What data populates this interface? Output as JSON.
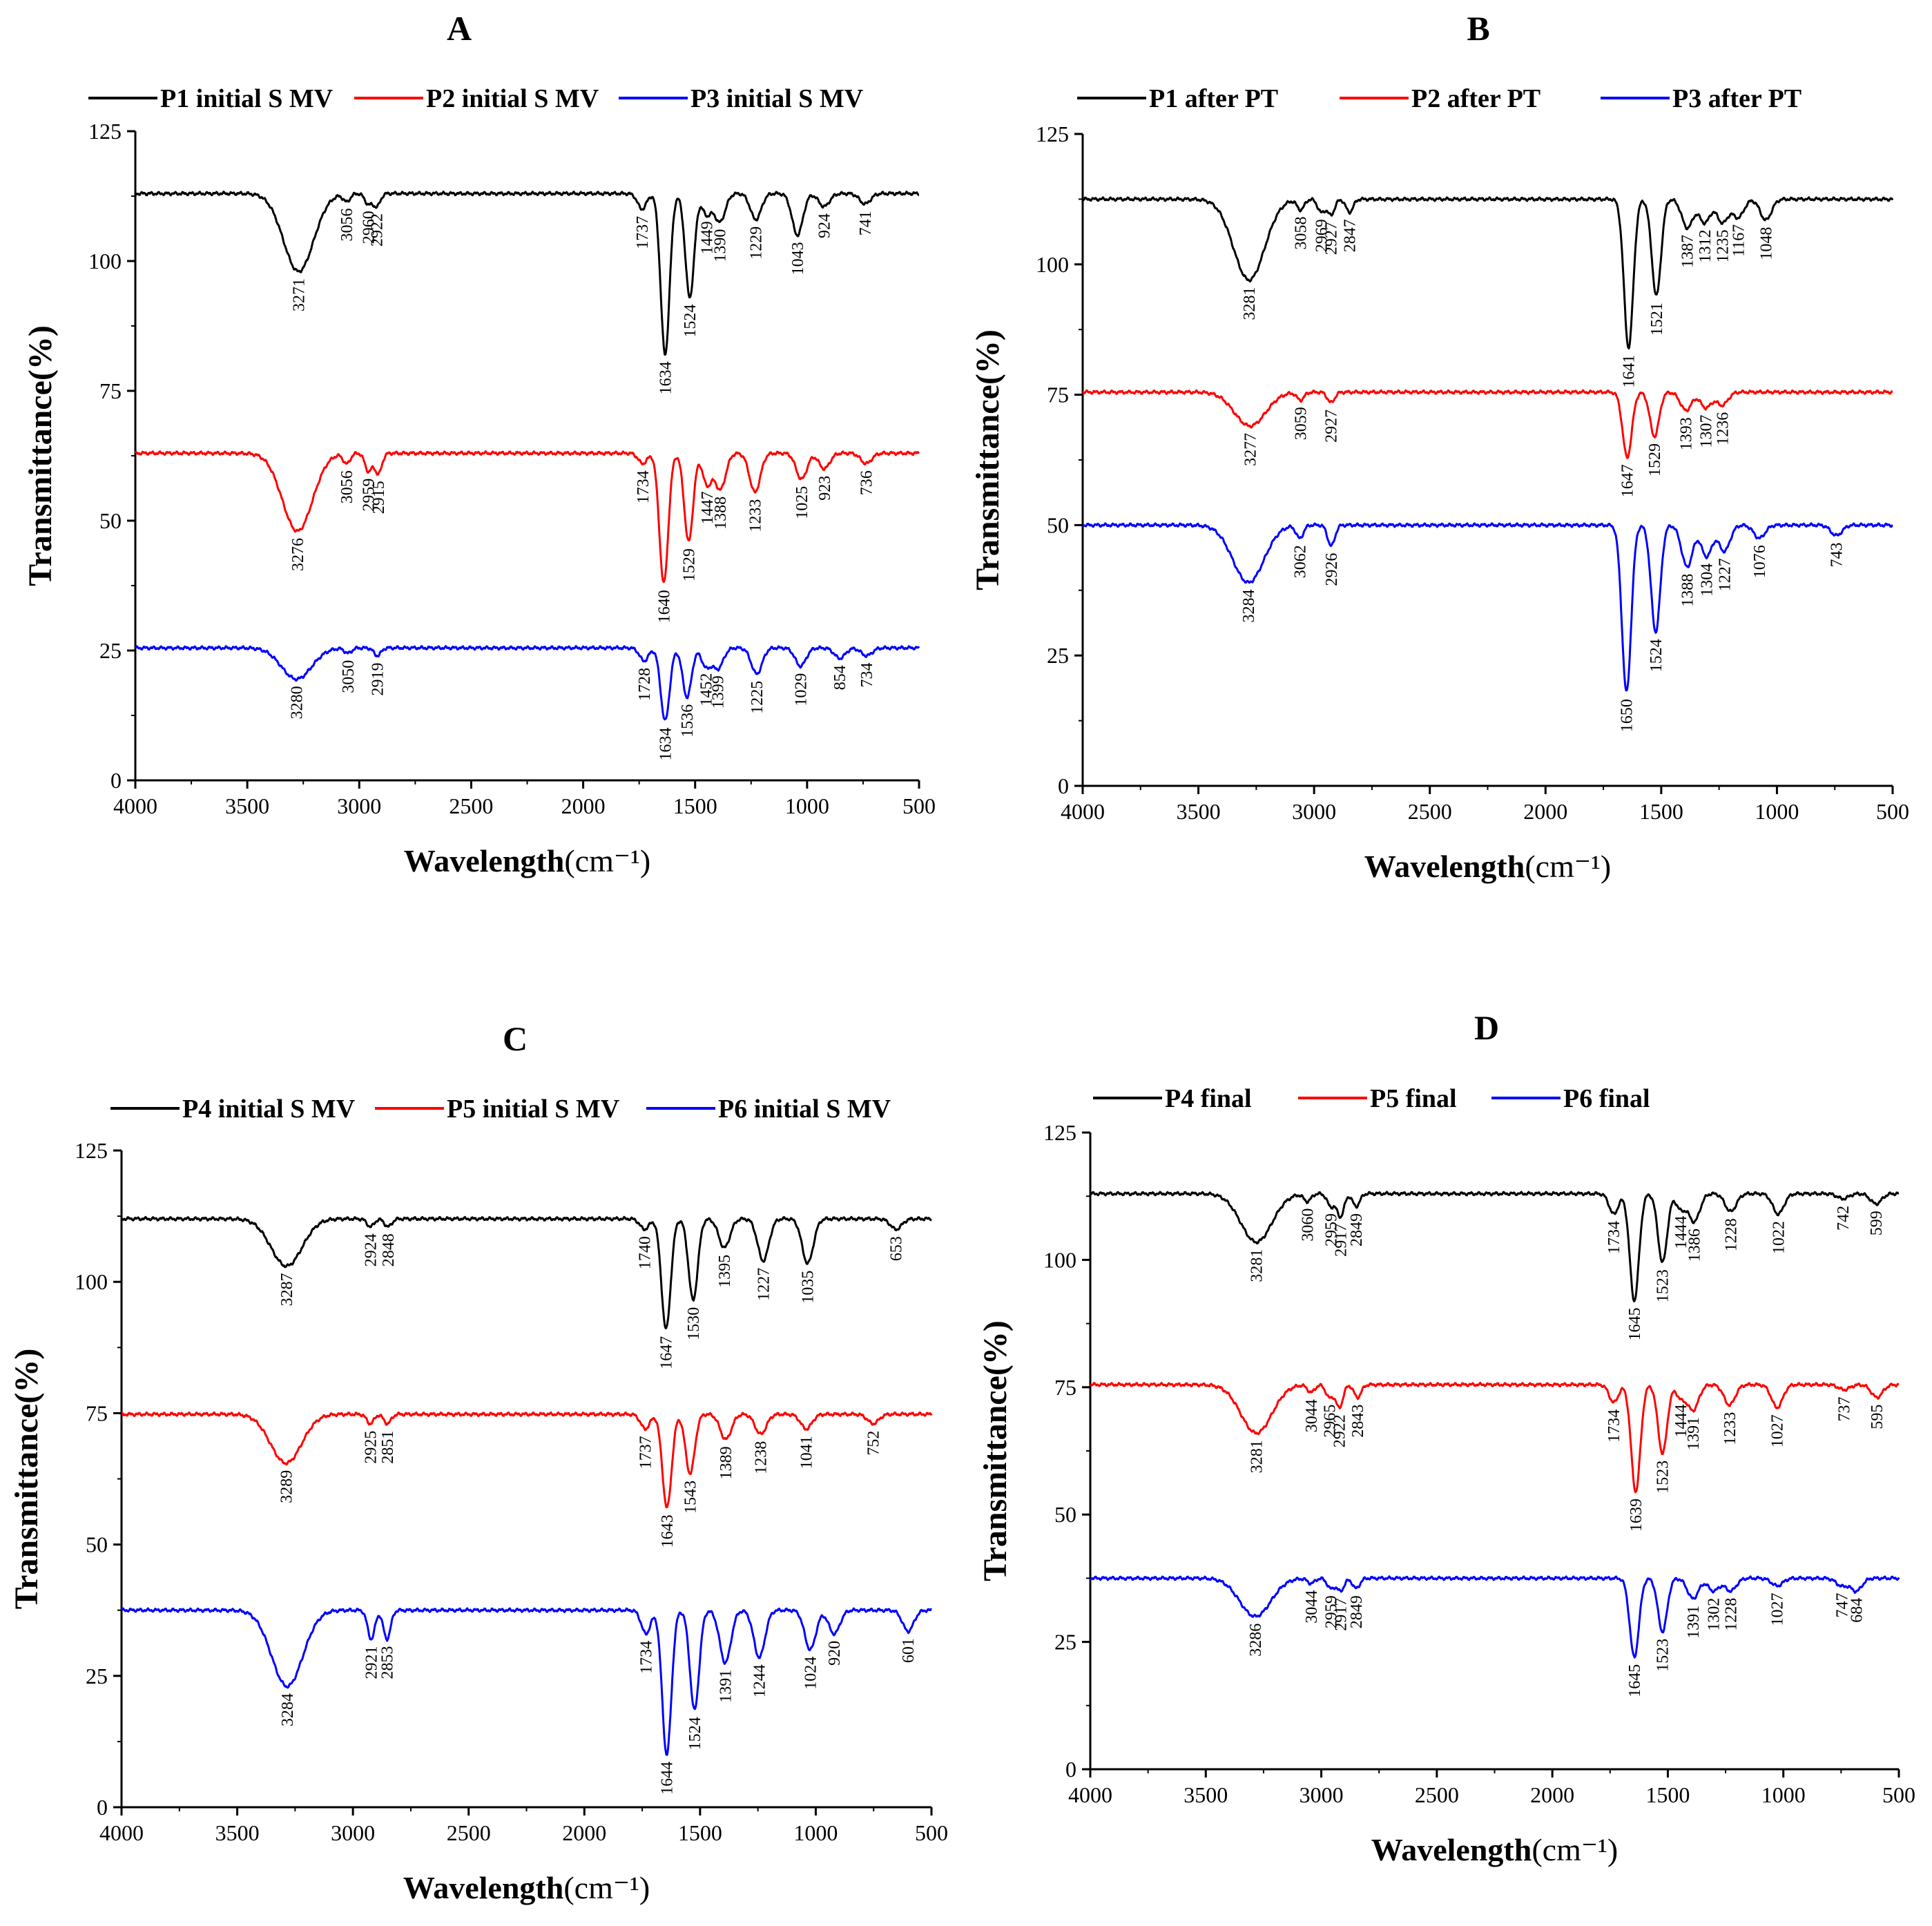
{
  "figure": {
    "colors": {
      "black": "#000000",
      "red": "#ff0000",
      "blue": "#0000ff"
    }
  },
  "chart_data": [
    {
      "panel": "A",
      "type": "line",
      "xlabel": "Wavelength",
      "xlabel_unit": "(cm⁻¹)",
      "ylabel": "Transmittance(%)",
      "xlim": [
        4000,
        500
      ],
      "ylim": [
        0,
        125
      ],
      "xticks": [
        4000,
        3500,
        3000,
        2500,
        2000,
        1500,
        1000,
        500
      ],
      "yticks": [
        0,
        25,
        50,
        75,
        100,
        125
      ],
      "legend_position": "top",
      "series": [
        {
          "name": "P1 initial S MV",
          "color": "#000000",
          "baseline": 113,
          "peaks": [
            [
              3271,
              98
            ],
            [
              3056,
              111.5
            ],
            [
              2960,
              111
            ],
            [
              2922,
              110.5
            ],
            [
              1737,
              110
            ],
            [
              1634,
              82
            ],
            [
              1524,
              93
            ],
            [
              1449,
              109
            ],
            [
              1390,
              107.5
            ],
            [
              1229,
              108
            ],
            [
              1043,
              105
            ],
            [
              924,
              110.5
            ],
            [
              741,
              111
            ]
          ]
        },
        {
          "name": "P2 initial S MV",
          "color": "#ff0000",
          "baseline": 63,
          "peaks": [
            [
              3276,
              48
            ],
            [
              3056,
              61
            ],
            [
              2959,
              59.5
            ],
            [
              2915,
              59
            ],
            [
              1734,
              61
            ],
            [
              1640,
              38
            ],
            [
              1529,
              46
            ],
            [
              1447,
              57
            ],
            [
              1388,
              56
            ],
            [
              1233,
              55.5
            ],
            [
              1025,
              58
            ],
            [
              923,
              60
            ],
            [
              736,
              61
            ]
          ]
        },
        {
          "name": "P3 initial S MV",
          "color": "#0000ff",
          "baseline": 25.5,
          "peaks": [
            [
              3280,
              19.5
            ],
            [
              3050,
              24.5
            ],
            [
              2919,
              24
            ],
            [
              1728,
              23
            ],
            [
              1634,
              11.5
            ],
            [
              1536,
              16
            ],
            [
              1452,
              22
            ],
            [
              1399,
              21.5
            ],
            [
              1225,
              20.5
            ],
            [
              1029,
              22
            ],
            [
              854,
              23.5
            ],
            [
              734,
              24
            ]
          ]
        }
      ]
    },
    {
      "panel": "B",
      "type": "line",
      "xlabel": "Wavelength",
      "xlabel_unit": "(cm⁻¹)",
      "ylabel": "Transmittance(%)",
      "xlim": [
        4000,
        500
      ],
      "ylim": [
        0,
        125
      ],
      "xticks": [
        4000,
        3500,
        3000,
        2500,
        2000,
        1500,
        1000,
        500
      ],
      "yticks": [
        0,
        25,
        50,
        75,
        100,
        125
      ],
      "legend_position": "top",
      "series": [
        {
          "name": "P1 after PT",
          "color": "#000000",
          "baseline": 112.5,
          "peaks": [
            [
              3281,
              97
            ],
            [
              3058,
              110.5
            ],
            [
              2969,
              110
            ],
            [
              2927,
              109.5
            ],
            [
              2847,
              110
            ],
            [
              1641,
              84
            ],
            [
              1521,
              94
            ],
            [
              1387,
              107
            ],
            [
              1312,
              108
            ],
            [
              1235,
              108
            ],
            [
              1167,
              109
            ],
            [
              1048,
              108.5
            ]
          ]
        },
        {
          "name": "P2 after PT",
          "color": "#ff0000",
          "baseline": 75.5,
          "peaks": [
            [
              3277,
              69
            ],
            [
              3059,
              74
            ],
            [
              2927,
              73.5
            ],
            [
              1647,
              63
            ],
            [
              1529,
              67
            ],
            [
              1393,
              72
            ],
            [
              1307,
              72.5
            ],
            [
              1236,
              73
            ]
          ]
        },
        {
          "name": "P3 after PT",
          "color": "#0000ff",
          "baseline": 50,
          "peaks": [
            [
              3284,
              39
            ],
            [
              3062,
              47.5
            ],
            [
              2926,
              46
            ],
            [
              1650,
              18
            ],
            [
              1524,
              29.5
            ],
            [
              1388,
              42
            ],
            [
              1304,
              44
            ],
            [
              1227,
              45
            ],
            [
              1076,
              47.5
            ],
            [
              743,
              48
            ]
          ]
        }
      ]
    },
    {
      "panel": "C",
      "type": "line",
      "xlabel": "Wavelength",
      "xlabel_unit": "(cm⁻¹)",
      "ylabel": "Transmittance(%)",
      "xlim": [
        4000,
        500
      ],
      "ylim": [
        0,
        125
      ],
      "xticks": [
        4000,
        3500,
        3000,
        2500,
        2000,
        1500,
        1000,
        500
      ],
      "yticks": [
        0,
        25,
        50,
        75,
        100,
        125
      ],
      "legend_position": "top",
      "series": [
        {
          "name": "P4 initial S MV",
          "color": "#000000",
          "baseline": 112,
          "peaks": [
            [
              3287,
              103
            ],
            [
              2924,
              110.5
            ],
            [
              2848,
              110.5
            ],
            [
              1740,
              110
            ],
            [
              1647,
              91
            ],
            [
              1530,
              96.5
            ],
            [
              1395,
              106.5
            ],
            [
              1227,
              104
            ],
            [
              1035,
              103.5
            ],
            [
              653,
              110
            ]
          ]
        },
        {
          "name": "P5 initial S MV",
          "color": "#ff0000",
          "baseline": 74.8,
          "peaks": [
            [
              3289,
              65.5
            ],
            [
              2925,
              73
            ],
            [
              2851,
              73
            ],
            [
              1737,
              72
            ],
            [
              1643,
              57
            ],
            [
              1543,
              63.5
            ],
            [
              1389,
              70
            ],
            [
              1238,
              71
            ],
            [
              1041,
              72
            ],
            [
              752,
              73
            ]
          ]
        },
        {
          "name": "P6 initial S MV",
          "color": "#0000ff",
          "baseline": 37.5,
          "peaks": [
            [
              3284,
              23
            ],
            [
              2921,
              32
            ],
            [
              2853,
              32
            ],
            [
              1734,
              33
            ],
            [
              1644,
              10
            ],
            [
              1524,
              18.5
            ],
            [
              1391,
              27.5
            ],
            [
              1244,
              28.5
            ],
            [
              1024,
              30
            ],
            [
              920,
              33
            ],
            [
              601,
              33.5
            ]
          ]
        }
      ]
    },
    {
      "panel": "D",
      "type": "line",
      "xlabel": "Wavelength",
      "xlabel_unit": "(cm⁻¹)",
      "ylabel": "Transmittance(%)",
      "xlim": [
        4000,
        500
      ],
      "ylim": [
        0,
        125
      ],
      "xticks": [
        4000,
        3500,
        3000,
        2500,
        2000,
        1500,
        1000,
        500
      ],
      "yticks": [
        0,
        25,
        50,
        75,
        100,
        125
      ],
      "legend_position": "top",
      "series": [
        {
          "name": "P4 final",
          "color": "#000000",
          "baseline": 113,
          "peaks": [
            [
              3281,
              103.5
            ],
            [
              3060,
              111.5
            ],
            [
              2959,
              110.5
            ],
            [
              2917,
              108.5
            ],
            [
              2849,
              110.5
            ],
            [
              1734,
              109
            ],
            [
              1645,
              92
            ],
            [
              1523,
              99.5
            ],
            [
              1444,
              110
            ],
            [
              1386,
              107.5
            ],
            [
              1228,
              109.5
            ],
            [
              1022,
              109
            ],
            [
              742,
              112
            ],
            [
              599,
              111
            ]
          ]
        },
        {
          "name": "P5 final",
          "color": "#ff0000",
          "baseline": 75.5,
          "peaks": [
            [
              3281,
              66
            ],
            [
              3044,
              74
            ],
            [
              2965,
              73
            ],
            [
              2922,
              71
            ],
            [
              2843,
              73
            ],
            [
              1734,
              72
            ],
            [
              1639,
              54.5
            ],
            [
              1523,
              62
            ],
            [
              1444,
              73
            ],
            [
              1391,
              70.5
            ],
            [
              1233,
              71.5
            ],
            [
              1027,
              71
            ],
            [
              737,
              74.5
            ],
            [
              595,
              73
            ]
          ]
        },
        {
          "name": "P6 final",
          "color": "#0000ff",
          "baseline": 37.5,
          "peaks": [
            [
              3286,
              30
            ],
            [
              3044,
              36.5
            ],
            [
              2959,
              35.5
            ],
            [
              2917,
              35
            ],
            [
              2849,
              35.5
            ],
            [
              1645,
              22
            ],
            [
              1523,
              27
            ],
            [
              1391,
              33.5
            ],
            [
              1302,
              35
            ],
            [
              1228,
              35
            ],
            [
              1027,
              36
            ],
            [
              747,
              36
            ],
            [
              684,
              35
            ]
          ]
        }
      ]
    }
  ]
}
